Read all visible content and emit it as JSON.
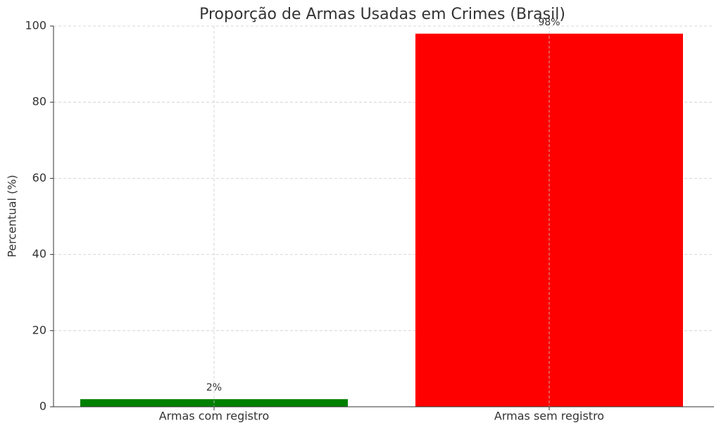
{
  "chart_data": {
    "type": "bar",
    "title": "Proporção de Armas Usadas em Crimes (Brasil)",
    "y_label": "Percentual (%)",
    "categories": [
      "Armas com registro",
      "Armas sem registro"
    ],
    "values": [
      2,
      98
    ],
    "value_labels": [
      "2%",
      "98%"
    ],
    "colors": [
      "#008000",
      "#ff0000"
    ],
    "ylim": [
      0,
      100
    ],
    "yticks": [
      0,
      20,
      40,
      60,
      80,
      100
    ],
    "grid": true
  }
}
